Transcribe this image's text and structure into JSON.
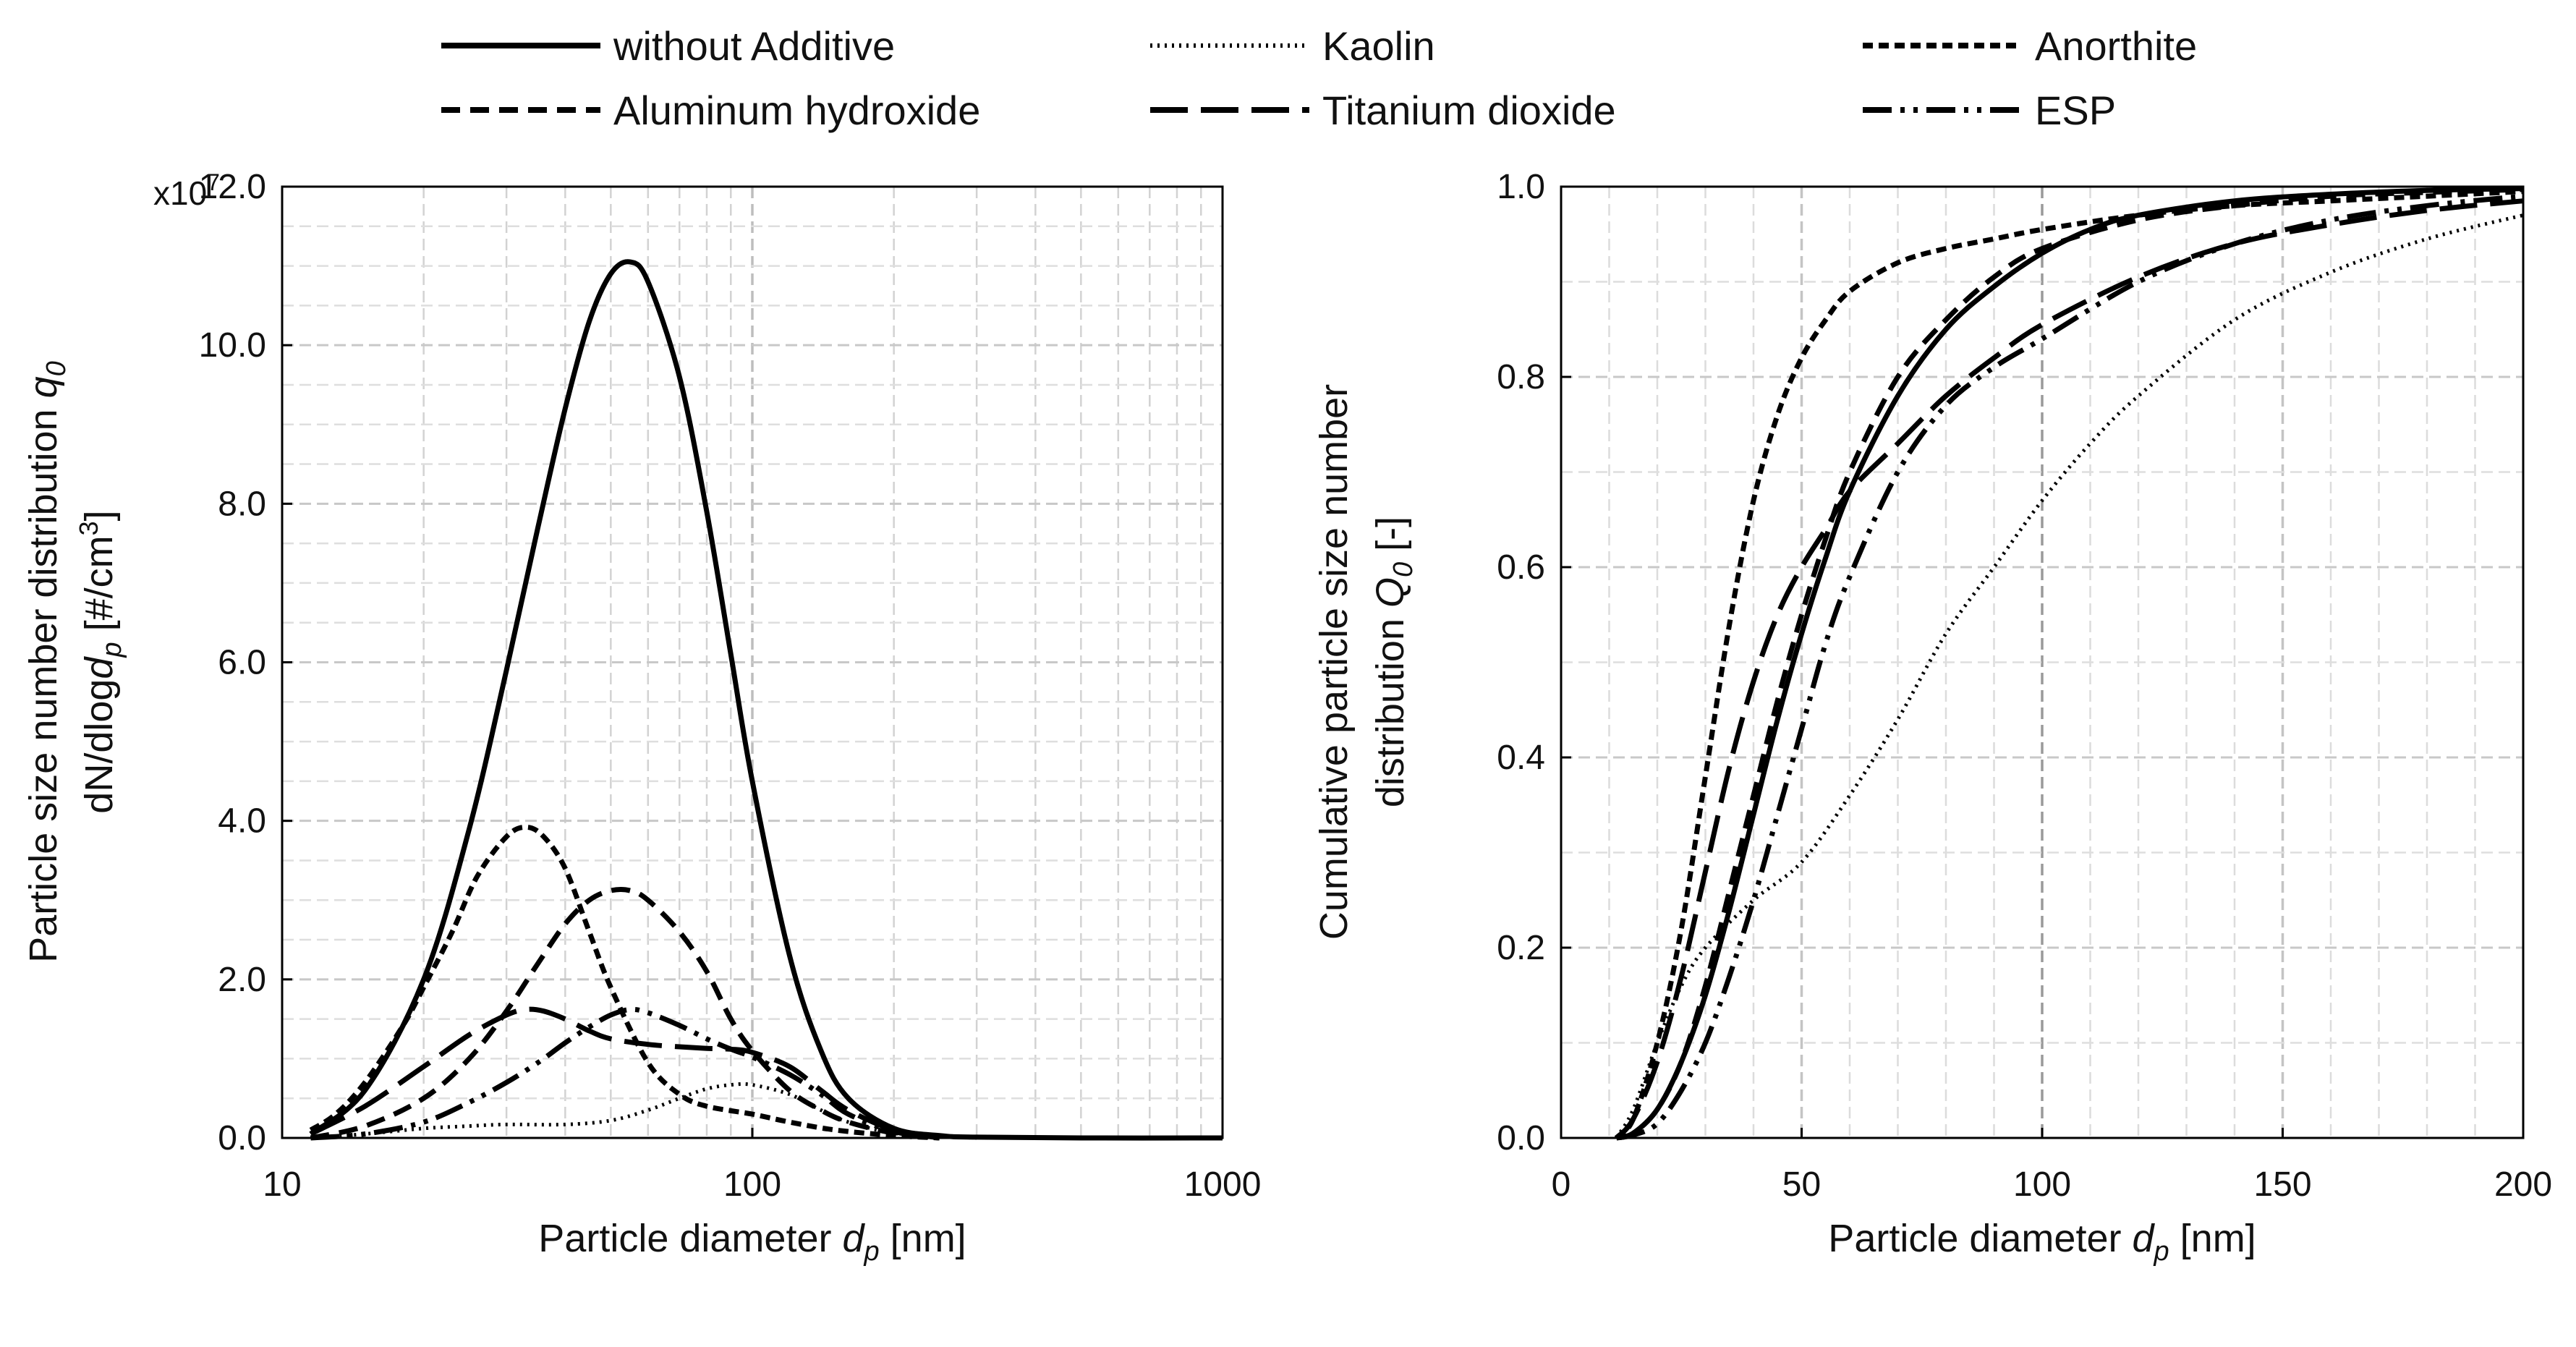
{
  "legend": [
    {
      "label": "without Additive",
      "dash": "solid"
    },
    {
      "label": "Kaolin",
      "dash": "dotted"
    },
    {
      "label": "Anorthite",
      "dash": "short-dash"
    },
    {
      "label": "Aluminum hydroxide",
      "dash": "dash"
    },
    {
      "label": "Titanium dioxide",
      "dash": "long-dash"
    },
    {
      "label": "ESP",
      "dash": "dash-dot-dot"
    }
  ],
  "chart_data": [
    {
      "type": "line",
      "xscale": "log",
      "xlim": [
        10,
        1000
      ],
      "ylim": [
        0,
        12
      ],
      "xticks": [
        "10",
        "100",
        "1000"
      ],
      "yticks": [
        "0.0",
        "2.0",
        "4.0",
        "6.0",
        "8.0",
        "10.0",
        "12.0"
      ],
      "multiplier": "x10",
      "multiplier_exp": "7",
      "xlabel": "Particle diameter ",
      "xlabel_sym": "d",
      "xlabel_sub": "p",
      "xlabel_unit": " [nm]",
      "ylabel_line1": "Particle size number distribution ",
      "ylabel_line1_sym": "q",
      "ylabel_line1_sub": "0",
      "ylabel_line2a": "dN/dlog",
      "ylabel_line2_sym": "d",
      "ylabel_line2_sub": "p",
      "ylabel_line2b": " [#/cm",
      "ylabel_line2_sup": "3",
      "ylabel_line2c": "]",
      "series": [
        {
          "name": "without Additive",
          "dash": "solid",
          "points": [
            [
              11.5,
              0.05
            ],
            [
              15,
              0.6
            ],
            [
              20,
              2.0
            ],
            [
              25,
              3.9
            ],
            [
              30,
              5.9
            ],
            [
              35,
              7.7
            ],
            [
              40,
              9.2
            ],
            [
              45,
              10.3
            ],
            [
              50,
              10.9
            ],
            [
              55,
              11.05
            ],
            [
              60,
              10.8
            ],
            [
              70,
              9.6
            ],
            [
              80,
              7.9
            ],
            [
              90,
              6.1
            ],
            [
              100,
              4.5
            ],
            [
              120,
              2.3
            ],
            [
              140,
              1.1
            ],
            [
              160,
              0.5
            ],
            [
              200,
              0.12
            ],
            [
              250,
              0.03
            ],
            [
              300,
              0.01
            ],
            [
              500,
              0.0
            ],
            [
              1000,
              0.0
            ]
          ]
        },
        {
          "name": "Kaolin",
          "dash": "dotted",
          "points": [
            [
              11.5,
              0.0
            ],
            [
              15,
              0.05
            ],
            [
              20,
              0.12
            ],
            [
              25,
              0.15
            ],
            [
              30,
              0.17
            ],
            [
              40,
              0.17
            ],
            [
              50,
              0.22
            ],
            [
              60,
              0.35
            ],
            [
              70,
              0.5
            ],
            [
              80,
              0.62
            ],
            [
              90,
              0.67
            ],
            [
              100,
              0.67
            ],
            [
              120,
              0.55
            ],
            [
              140,
              0.35
            ],
            [
              160,
              0.2
            ],
            [
              200,
              0.06
            ],
            [
              250,
              0.02
            ],
            [
              300,
              0.0
            ]
          ]
        },
        {
          "name": "Anorthite",
          "dash": "short-dash",
          "points": [
            [
              11.5,
              0.1
            ],
            [
              13,
              0.3
            ],
            [
              15,
              0.7
            ],
            [
              18,
              1.4
            ],
            [
              20,
              1.9
            ],
            [
              23,
              2.6
            ],
            [
              26,
              3.3
            ],
            [
              30,
              3.8
            ],
            [
              33,
              3.92
            ],
            [
              36,
              3.8
            ],
            [
              40,
              3.4
            ],
            [
              45,
              2.6
            ],
            [
              50,
              1.9
            ],
            [
              60,
              0.95
            ],
            [
              70,
              0.55
            ],
            [
              80,
              0.4
            ],
            [
              100,
              0.3
            ],
            [
              120,
              0.2
            ],
            [
              150,
              0.1
            ],
            [
              200,
              0.03
            ],
            [
              250,
              0.0
            ]
          ]
        },
        {
          "name": "Aluminum hydroxide",
          "dash": "dash",
          "points": [
            [
              11.5,
              0.0
            ],
            [
              15,
              0.15
            ],
            [
              20,
              0.5
            ],
            [
              25,
              1.0
            ],
            [
              30,
              1.6
            ],
            [
              35,
              2.2
            ],
            [
              40,
              2.7
            ],
            [
              45,
              3.0
            ],
            [
              50,
              3.12
            ],
            [
              55,
              3.12
            ],
            [
              60,
              3.0
            ],
            [
              70,
              2.6
            ],
            [
              80,
              2.1
            ],
            [
              90,
              1.5
            ],
            [
              100,
              1.1
            ],
            [
              120,
              0.6
            ],
            [
              140,
              0.35
            ],
            [
              160,
              0.2
            ],
            [
              200,
              0.06
            ],
            [
              250,
              0.0
            ]
          ]
        },
        {
          "name": "Titanium dioxide",
          "dash": "long-dash",
          "points": [
            [
              11.5,
              0.05
            ],
            [
              15,
              0.4
            ],
            [
              20,
              0.9
            ],
            [
              25,
              1.3
            ],
            [
              30,
              1.55
            ],
            [
              33,
              1.62
            ],
            [
              36,
              1.6
            ],
            [
              40,
              1.5
            ],
            [
              45,
              1.35
            ],
            [
              50,
              1.25
            ],
            [
              60,
              1.18
            ],
            [
              70,
              1.15
            ],
            [
              80,
              1.13
            ],
            [
              90,
              1.12
            ],
            [
              100,
              1.08
            ],
            [
              120,
              0.9
            ],
            [
              140,
              0.6
            ],
            [
              160,
              0.35
            ],
            [
              200,
              0.1
            ],
            [
              250,
              0.0
            ]
          ]
        },
        {
          "name": "ESP",
          "dash": "dash-dot-dot",
          "points": [
            [
              11.5,
              0.0
            ],
            [
              15,
              0.05
            ],
            [
              20,
              0.2
            ],
            [
              25,
              0.45
            ],
            [
              30,
              0.7
            ],
            [
              35,
              0.95
            ],
            [
              40,
              1.2
            ],
            [
              45,
              1.4
            ],
            [
              50,
              1.55
            ],
            [
              55,
              1.62
            ],
            [
              60,
              1.58
            ],
            [
              70,
              1.42
            ],
            [
              80,
              1.25
            ],
            [
              90,
              1.12
            ],
            [
              100,
              1.02
            ],
            [
              120,
              0.8
            ],
            [
              140,
              0.55
            ],
            [
              160,
              0.3
            ],
            [
              200,
              0.08
            ],
            [
              250,
              0.0
            ]
          ]
        }
      ]
    },
    {
      "type": "line",
      "xscale": "linear",
      "xlim": [
        0,
        200
      ],
      "ylim": [
        0,
        1
      ],
      "xticks": [
        "0",
        "50",
        "100",
        "150",
        "200"
      ],
      "yticks": [
        "0.0",
        "0.2",
        "0.4",
        "0.6",
        "0.8",
        "1.0"
      ],
      "xlabel": "Particle diameter ",
      "xlabel_sym": "d",
      "xlabel_sub": "p",
      "xlabel_unit": " [nm]",
      "ylabel_line1": "Cumulative particle size number",
      "ylabel_line2a": "distribution ",
      "ylabel_line2_sym": "Q",
      "ylabel_line2_sub": "0",
      "ylabel_line2b": " [-]",
      "series": [
        {
          "name": "without Additive",
          "dash": "solid",
          "points": [
            [
              11.5,
              0.0
            ],
            [
              15,
              0.005
            ],
            [
              20,
              0.03
            ],
            [
              25,
              0.08
            ],
            [
              30,
              0.15
            ],
            [
              35,
              0.24
            ],
            [
              40,
              0.34
            ],
            [
              45,
              0.44
            ],
            [
              50,
              0.53
            ],
            [
              55,
              0.61
            ],
            [
              60,
              0.68
            ],
            [
              70,
              0.78
            ],
            [
              80,
              0.85
            ],
            [
              90,
              0.895
            ],
            [
              100,
              0.93
            ],
            [
              110,
              0.955
            ],
            [
              120,
              0.97
            ],
            [
              140,
              0.985
            ],
            [
              160,
              0.992
            ],
            [
              180,
              0.996
            ],
            [
              200,
              0.998
            ]
          ]
        },
        {
          "name": "Kaolin",
          "dash": "dotted",
          "points": [
            [
              11.5,
              0.0
            ],
            [
              15,
              0.03
            ],
            [
              20,
              0.1
            ],
            [
              25,
              0.16
            ],
            [
              30,
              0.2
            ],
            [
              40,
              0.25
            ],
            [
              50,
              0.29
            ],
            [
              60,
              0.36
            ],
            [
              70,
              0.44
            ],
            [
              80,
              0.53
            ],
            [
              90,
              0.6
            ],
            [
              100,
              0.67
            ],
            [
              110,
              0.73
            ],
            [
              120,
              0.78
            ],
            [
              140,
              0.86
            ],
            [
              160,
              0.91
            ],
            [
              180,
              0.945
            ],
            [
              200,
              0.97
            ]
          ]
        },
        {
          "name": "Anorthite",
          "dash": "short-dash",
          "points": [
            [
              11.5,
              0.0
            ],
            [
              15,
              0.02
            ],
            [
              20,
              0.1
            ],
            [
              25,
              0.22
            ],
            [
              30,
              0.38
            ],
            [
              35,
              0.54
            ],
            [
              40,
              0.67
            ],
            [
              45,
              0.76
            ],
            [
              50,
              0.82
            ],
            [
              55,
              0.86
            ],
            [
              60,
              0.89
            ],
            [
              70,
              0.92
            ],
            [
              80,
              0.935
            ],
            [
              90,
              0.945
            ],
            [
              100,
              0.955
            ],
            [
              120,
              0.97
            ],
            [
              140,
              0.98
            ],
            [
              160,
              0.985
            ],
            [
              180,
              0.99
            ],
            [
              200,
              0.995
            ]
          ]
        },
        {
          "name": "Aluminum hydroxide",
          "dash": "dash",
          "points": [
            [
              11.5,
              0.0
            ],
            [
              15,
              0.005
            ],
            [
              20,
              0.03
            ],
            [
              25,
              0.08
            ],
            [
              30,
              0.16
            ],
            [
              35,
              0.26
            ],
            [
              40,
              0.36
            ],
            [
              45,
              0.46
            ],
            [
              50,
              0.55
            ],
            [
              55,
              0.63
            ],
            [
              60,
              0.7
            ],
            [
              70,
              0.8
            ],
            [
              80,
              0.86
            ],
            [
              90,
              0.905
            ],
            [
              100,
              0.935
            ],
            [
              120,
              0.965
            ],
            [
              140,
              0.98
            ],
            [
              160,
              0.99
            ],
            [
              180,
              0.994
            ],
            [
              200,
              0.997
            ]
          ]
        },
        {
          "name": "Titanium dioxide",
          "dash": "long-dash",
          "points": [
            [
              11.5,
              0.0
            ],
            [
              15,
              0.02
            ],
            [
              20,
              0.08
            ],
            [
              25,
              0.17
            ],
            [
              30,
              0.28
            ],
            [
              35,
              0.39
            ],
            [
              40,
              0.48
            ],
            [
              45,
              0.55
            ],
            [
              50,
              0.6
            ],
            [
              55,
              0.64
            ],
            [
              60,
              0.68
            ],
            [
              70,
              0.73
            ],
            [
              80,
              0.78
            ],
            [
              90,
              0.82
            ],
            [
              100,
              0.855
            ],
            [
              120,
              0.905
            ],
            [
              140,
              0.94
            ],
            [
              160,
              0.96
            ],
            [
              180,
              0.975
            ],
            [
              200,
              0.985
            ]
          ]
        },
        {
          "name": "ESP",
          "dash": "dash-dot-dot",
          "points": [
            [
              11.5,
              0.0
            ],
            [
              15,
              0.003
            ],
            [
              20,
              0.015
            ],
            [
              25,
              0.05
            ],
            [
              30,
              0.1
            ],
            [
              35,
              0.17
            ],
            [
              40,
              0.25
            ],
            [
              45,
              0.34
            ],
            [
              50,
              0.43
            ],
            [
              55,
              0.52
            ],
            [
              60,
              0.59
            ],
            [
              70,
              0.7
            ],
            [
              80,
              0.77
            ],
            [
              90,
              0.81
            ],
            [
              100,
              0.84
            ],
            [
              120,
              0.9
            ],
            [
              140,
              0.94
            ],
            [
              160,
              0.965
            ],
            [
              180,
              0.98
            ],
            [
              200,
              0.99
            ]
          ]
        }
      ]
    }
  ]
}
